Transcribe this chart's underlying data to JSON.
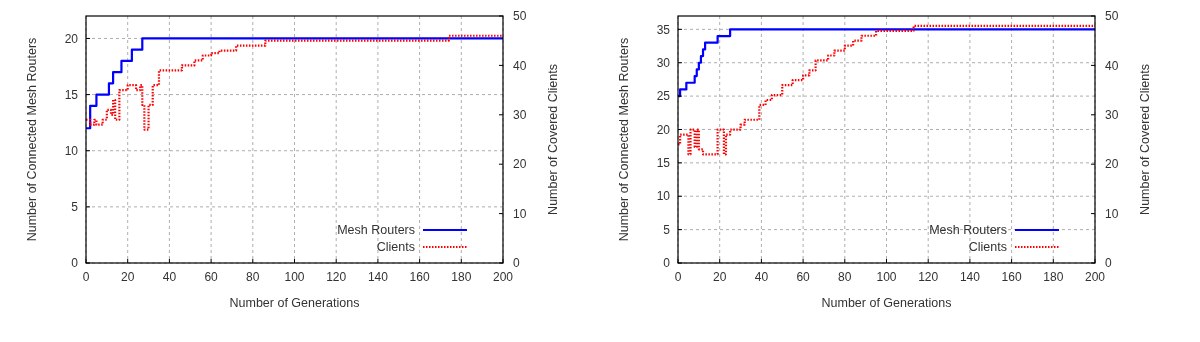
{
  "chart_data": [
    {
      "type": "step",
      "xlabel": "Number of Generations",
      "ylabel": "Number of Connected Mesh Routers",
      "y2label": "Number of Covered Clients",
      "xlim": [
        0,
        200
      ],
      "xticks": [
        0,
        20,
        40,
        60,
        80,
        100,
        120,
        140,
        160,
        180,
        200
      ],
      "ylim": [
        0,
        22
      ],
      "yticks": [
        0,
        5,
        10,
        15,
        20
      ],
      "y2lim": [
        0,
        50
      ],
      "y2ticks": [
        0,
        10,
        20,
        30,
        40,
        50
      ],
      "grid": true,
      "legend": "bottom right",
      "series": [
        {
          "name": "Mesh Routers",
          "color": "#0000ff",
          "line_style": "solid",
          "x": [
            0,
            2,
            5,
            11,
            13,
            17,
            22,
            27,
            200
          ],
          "values": [
            12,
            14,
            15,
            16,
            17,
            18,
            19,
            20,
            20
          ]
        },
        {
          "name": "Clients",
          "color": "#ff0000",
          "line_style": "dotted",
          "axis": "y2",
          "x": [
            0,
            2,
            4,
            5,
            8,
            10,
            12,
            13,
            14,
            16,
            20,
            24,
            26,
            27,
            28,
            30,
            32,
            35,
            46,
            52,
            56,
            60,
            64,
            72,
            86,
            174,
            200
          ],
          "values": [
            29,
            28,
            29,
            28,
            29,
            31,
            30,
            33,
            29,
            35,
            36,
            35,
            36,
            32,
            27,
            32,
            36,
            39,
            40,
            41,
            42,
            42.5,
            43,
            44,
            45,
            46,
            46
          ]
        }
      ]
    },
    {
      "type": "step",
      "xlabel": "Number of Generations",
      "ylabel": "Number of Connected Mesh Routers",
      "y2label": "Number of Covered Clients",
      "xlim": [
        0,
        200
      ],
      "xticks": [
        0,
        20,
        40,
        60,
        80,
        100,
        120,
        140,
        160,
        180,
        200
      ],
      "ylim": [
        0,
        37
      ],
      "yticks": [
        0,
        5,
        10,
        15,
        20,
        25,
        30,
        35
      ],
      "y2lim": [
        0,
        50
      ],
      "y2ticks": [
        0,
        10,
        20,
        30,
        40,
        50
      ],
      "grid": true,
      "legend": "bottom right",
      "series": [
        {
          "name": "Mesh Routers",
          "color": "#0000ff",
          "line_style": "solid",
          "x": [
            0,
            1,
            4,
            8,
            9,
            10,
            11,
            12,
            13,
            19,
            25,
            200
          ],
          "values": [
            25,
            26,
            27,
            28,
            29,
            30,
            31,
            32,
            33,
            34,
            35,
            35
          ]
        },
        {
          "name": "Clients",
          "color": "#ff0000",
          "line_style": "dotted",
          "axis": "y2",
          "x": [
            0,
            1,
            5,
            6,
            8,
            9,
            10,
            12,
            19,
            21,
            22,
            23,
            25,
            30,
            32,
            39,
            42,
            45,
            50,
            55,
            60,
            63,
            66,
            72,
            75,
            80,
            84,
            88,
            95,
            113,
            200
          ],
          "values": [
            24,
            26,
            22,
            27,
            23.5,
            27,
            23,
            22,
            27,
            27,
            22,
            26,
            27,
            28,
            29,
            32,
            33,
            34,
            36,
            37,
            38,
            39,
            41,
            42,
            43,
            44,
            45,
            46,
            47,
            48,
            48
          ]
        }
      ]
    }
  ]
}
